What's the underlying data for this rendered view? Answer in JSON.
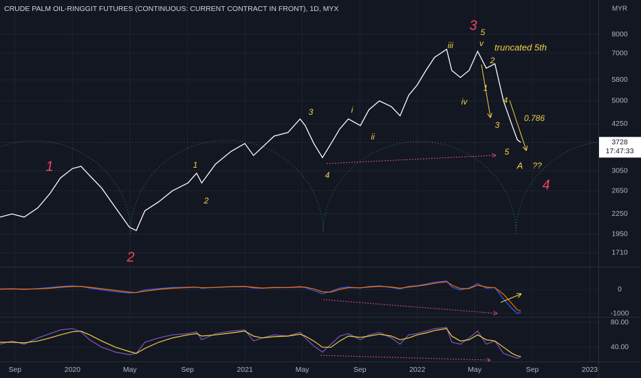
{
  "header": {
    "title": "CRUDE PALM OIL-RINGGIT FUTURES (CONTINUOUS: CURRENT CONTRACT IN FRONT), 1D, MYX",
    "currency": "MYR",
    "last_price": 3728,
    "countdown": "17:47:33"
  },
  "chart_data": [
    {
      "type": "line",
      "log_scale": true,
      "grid": true,
      "x": [
        2019.58,
        2019.65,
        2019.72,
        2019.8,
        2019.87,
        2019.93,
        2020.0,
        2020.05,
        2020.1,
        2020.17,
        2020.25,
        2020.33,
        2020.37,
        2020.42,
        2020.5,
        2020.58,
        2020.67,
        2020.72,
        2020.75,
        2020.83,
        2020.92,
        2021.0,
        2021.05,
        2021.1,
        2021.17,
        2021.25,
        2021.32,
        2021.35,
        2021.4,
        2021.45,
        2021.5,
        2021.55,
        2021.6,
        2021.67,
        2021.72,
        2021.78,
        2021.85,
        2021.9,
        2021.95,
        2022.0,
        2022.05,
        2022.1,
        2022.17,
        2022.2,
        2022.25,
        2022.3,
        2022.35,
        2022.4,
        2022.45,
        2022.5,
        2022.55,
        2022.58,
        2022.6
      ],
      "series": [
        {
          "color": "#ffffff",
          "values": [
            2200,
            2250,
            2200,
            2350,
            2600,
            2900,
            3100,
            3150,
            2950,
            2700,
            2350,
            2050,
            2000,
            2300,
            2450,
            2650,
            2800,
            3000,
            2800,
            3200,
            3500,
            3700,
            3400,
            3600,
            3900,
            4000,
            4400,
            4200,
            3700,
            3350,
            3700,
            4100,
            4400,
            4200,
            4700,
            5000,
            4800,
            4500,
            5200,
            5600,
            6200,
            6800,
            7200,
            6200,
            5900,
            6200,
            7100,
            6300,
            6500,
            5000,
            4200,
            3800,
            3728
          ]
        }
      ],
      "xlim": [
        2019.58,
        2023.05
      ],
      "xticks": [
        {
          "value": 2019.667,
          "label": "Sep"
        },
        {
          "value": 2020,
          "label": "2020"
        },
        {
          "value": 2020.333,
          "label": "May"
        },
        {
          "value": 2020.667,
          "label": "Sep"
        },
        {
          "value": 2021,
          "label": "2021"
        },
        {
          "value": 2021.333,
          "label": "May"
        },
        {
          "value": 2021.667,
          "label": "Sep"
        },
        {
          "value": 2022,
          "label": "2022"
        },
        {
          "value": 2022.333,
          "label": "May"
        },
        {
          "value": 2022.667,
          "label": "Sep"
        },
        {
          "value": 2023,
          "label": "2023"
        }
      ],
      "ylim": [
        1550,
        10200
      ],
      "yticks": [
        1710,
        1950,
        2250,
        2650,
        3050,
        4250,
        5000,
        5800,
        7000,
        8000
      ],
      "annotations": [
        {
          "text": "1",
          "color": "#f0455f"
        },
        {
          "text": "2",
          "color": "#f0455f"
        },
        {
          "text": "3",
          "color": "#f0455f"
        },
        {
          "text": "4",
          "color": "#f0455f"
        },
        {
          "text": "1",
          "color": "#f5d142"
        },
        {
          "text": "2",
          "color": "#f5d142"
        },
        {
          "text": "3",
          "color": "#f5d142"
        },
        {
          "text": "4",
          "color": "#f5d142"
        },
        {
          "text": "i",
          "color": "#f5d142"
        },
        {
          "text": "ii",
          "color": "#f5d142"
        },
        {
          "text": "iii",
          "color": "#f5d142"
        },
        {
          "text": "iv",
          "color": "#f5d142"
        },
        {
          "text": "5",
          "color": "#f5d142"
        },
        {
          "text": "v",
          "color": "#f5d142"
        },
        {
          "text": "truncated 5th",
          "color": "#f5d142"
        },
        {
          "text": "2",
          "color": "#f5d142"
        },
        {
          "text": "1",
          "color": "#f5d142"
        },
        {
          "text": "4",
          "color": "#f5d142"
        },
        {
          "text": "3",
          "color": "#f5d142"
        },
        {
          "text": "0.786",
          "color": "#f5d142"
        },
        {
          "text": "5",
          "color": "#f5d142"
        },
        {
          "text": "A",
          "color": "#f5d142"
        },
        {
          "text": "??",
          "color": "#f5d142"
        }
      ]
    },
    {
      "type": "line",
      "grid": true,
      "x": [
        2019.58,
        2019.65,
        2019.72,
        2019.8,
        2019.87,
        2019.93,
        2020.0,
        2020.05,
        2020.1,
        2020.17,
        2020.25,
        2020.33,
        2020.37,
        2020.42,
        2020.5,
        2020.58,
        2020.67,
        2020.72,
        2020.75,
        2020.83,
        2020.92,
        2021.0,
        2021.05,
        2021.1,
        2021.17,
        2021.25,
        2021.32,
        2021.35,
        2021.4,
        2021.45,
        2021.5,
        2021.55,
        2021.6,
        2021.67,
        2021.72,
        2021.78,
        2021.85,
        2021.9,
        2021.95,
        2022.0,
        2022.05,
        2022.1,
        2022.17,
        2022.2,
        2022.25,
        2022.3,
        2022.35,
        2022.4,
        2022.45,
        2022.5,
        2022.55,
        2022.58,
        2022.6
      ],
      "series": [
        {
          "color": "#2962ff",
          "values": [
            20,
            30,
            0,
            40,
            80,
            120,
            150,
            120,
            60,
            -20,
            -90,
            -150,
            -120,
            -20,
            40,
            80,
            90,
            100,
            50,
            90,
            120,
            130,
            60,
            50,
            90,
            80,
            120,
            80,
            -50,
            -180,
            -80,
            60,
            100,
            60,
            120,
            150,
            80,
            20,
            130,
            160,
            220,
            300,
            350,
            100,
            -20,
            60,
            250,
            50,
            80,
            -400,
            -800,
            -1000,
            -950
          ]
        },
        {
          "color": "#ff6d00",
          "values": [
            10,
            20,
            15,
            25,
            50,
            90,
            120,
            130,
            90,
            30,
            -40,
            -110,
            -130,
            -70,
            0,
            50,
            80,
            95,
            70,
            85,
            110,
            120,
            90,
            60,
            75,
            80,
            100,
            95,
            20,
            -100,
            -110,
            0,
            70,
            70,
            100,
            130,
            100,
            50,
            100,
            140,
            190,
            260,
            320,
            180,
            40,
            40,
            180,
            100,
            70,
            -200,
            -600,
            -850,
            -900
          ]
        }
      ],
      "xlim": [
        2019.58,
        2023.05
      ],
      "ylim": [
        -1110,
        890
      ],
      "yticks": [
        0,
        -1000
      ]
    },
    {
      "type": "line",
      "grid": true,
      "x": [
        2019.58,
        2019.65,
        2019.72,
        2019.8,
        2019.87,
        2019.93,
        2020.0,
        2020.05,
        2020.1,
        2020.17,
        2020.25,
        2020.33,
        2020.37,
        2020.42,
        2020.5,
        2020.58,
        2020.67,
        2020.72,
        2020.75,
        2020.83,
        2020.92,
        2021.0,
        2021.05,
        2021.1,
        2021.17,
        2021.25,
        2021.32,
        2021.35,
        2021.4,
        2021.45,
        2021.5,
        2021.55,
        2021.6,
        2021.67,
        2021.72,
        2021.78,
        2021.85,
        2021.9,
        2021.95,
        2022.0,
        2022.05,
        2022.1,
        2022.17,
        2022.2,
        2022.25,
        2022.3,
        2022.35,
        2022.4,
        2022.45,
        2022.5,
        2022.55,
        2022.58,
        2022.6
      ],
      "series": [
        {
          "color": "#7e57c2",
          "values": [
            45,
            50,
            45,
            55,
            62,
            68,
            70,
            65,
            52,
            40,
            32,
            28,
            30,
            48,
            55,
            60,
            62,
            65,
            52,
            62,
            66,
            68,
            50,
            55,
            60,
            58,
            64,
            55,
            42,
            32,
            45,
            58,
            62,
            52,
            60,
            64,
            55,
            45,
            60,
            62,
            66,
            70,
            72,
            48,
            45,
            55,
            66,
            45,
            50,
            30,
            25,
            22,
            24
          ]
        },
        {
          "color": "#f5d142",
          "values": [
            48,
            48,
            47,
            50,
            55,
            60,
            65,
            66,
            60,
            50,
            40,
            33,
            30,
            38,
            48,
            55,
            60,
            62,
            58,
            60,
            63,
            66,
            58,
            55,
            57,
            58,
            61,
            58,
            50,
            40,
            40,
            50,
            58,
            56,
            58,
            61,
            58,
            52,
            55,
            60,
            63,
            67,
            70,
            58,
            50,
            52,
            60,
            52,
            50,
            40,
            30,
            26,
            25
          ]
        }
      ],
      "xlim": [
        2019.58,
        2023.05
      ],
      "ylim": [
        18,
        88
      ],
      "yticks": [
        {
          "value": 80,
          "label": "80.00"
        },
        {
          "value": 40,
          "label": "40.00"
        }
      ]
    }
  ]
}
